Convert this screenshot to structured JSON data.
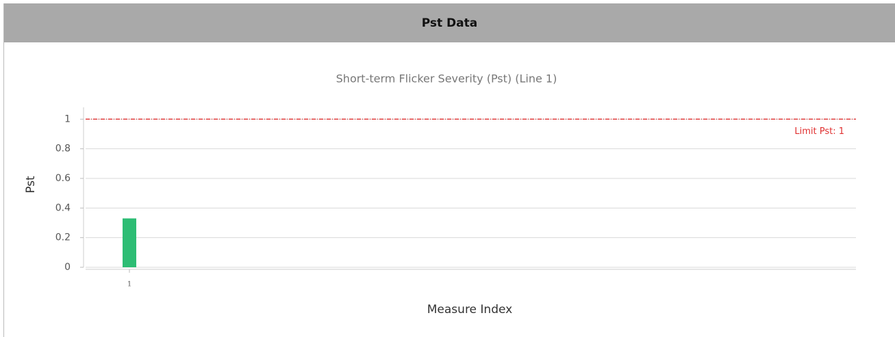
{
  "header": {
    "title": "Pst Data"
  },
  "chart_data": {
    "type": "bar",
    "title": "Short-term Flicker Severity (Pst) (Line 1)",
    "x_label": "Measure Index",
    "y_label": "Pst",
    "categories": [
      "1"
    ],
    "values": [
      0.33
    ],
    "color": "#2dbd74",
    "ylim": [
      0,
      1.08
    ],
    "yticks": [
      0,
      0.2,
      0.4,
      0.6,
      0.8,
      1
    ],
    "grid": true,
    "limit": {
      "value": 1,
      "label": "Limit Pst: 1",
      "color": "#e03030"
    }
  }
}
